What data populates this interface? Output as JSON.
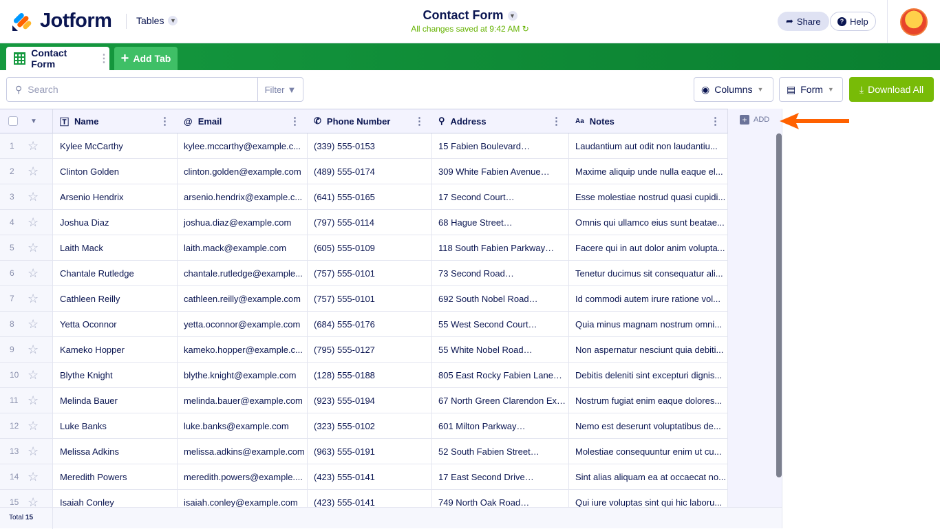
{
  "header": {
    "logo": "Jotform",
    "app_switcher": "Tables",
    "title": "Contact Form",
    "save_status": "All changes saved at 9:42 AM",
    "share": "Share",
    "help": "Help"
  },
  "tabs": {
    "active": "Contact Form",
    "add": "Add Tab"
  },
  "toolbar": {
    "search_placeholder": "Search",
    "search_value": "",
    "filter": "Filter",
    "columns": "Columns",
    "form": "Form",
    "download": "Download All"
  },
  "colors": {
    "brand_green": "#0a7f30",
    "download": "#78bb07",
    "arrow": "#ff6100",
    "saved": "#64b200"
  },
  "columns": [
    {
      "label": "Name",
      "icon": "text-icon"
    },
    {
      "label": "Email",
      "icon": "at-icon"
    },
    {
      "label": "Phone Number",
      "icon": "phone-icon"
    },
    {
      "label": "Address",
      "icon": "location-pin-icon"
    },
    {
      "label": "Notes",
      "icon": "text-size-icon"
    }
  ],
  "add_column": "ADD",
  "rows": [
    [
      "1",
      "Kylee McCarthy",
      "kylee.mccarthy@example.c...",
      "(339) 555-0153",
      "15 Fabien Boulevard…",
      "Laudantium aut odit non laudantiu..."
    ],
    [
      "2",
      "Clinton Golden",
      "clinton.golden@example.com",
      "(489) 555-0174",
      "309 White Fabien Avenue…",
      "Maxime aliquip unde nulla eaque el..."
    ],
    [
      "3",
      "Arsenio Hendrix",
      "arsenio.hendrix@example.c...",
      "(641) 555-0165",
      "17 Second Court…",
      "Esse molestiae nostrud quasi cupidi..."
    ],
    [
      "4",
      "Joshua Diaz",
      "joshua.diaz@example.com",
      "(797) 555-0114",
      "68 Hague Street…",
      "Omnis qui ullamco eius sunt beatae..."
    ],
    [
      "5",
      "Laith Mack",
      "laith.mack@example.com",
      "(605) 555-0109",
      "118 South Fabien Parkway…",
      "Facere qui in aut dolor anim volupta..."
    ],
    [
      "6",
      "Chantale Rutledge",
      "chantale.rutledge@example...",
      "(757) 555-0101",
      "73 Second Road…",
      "Tenetur ducimus sit consequatur ali..."
    ],
    [
      "7",
      "Cathleen Reilly",
      "cathleen.reilly@example.com",
      "(757) 555-0101",
      "692 South Nobel Road…",
      "Id commodi autem irure ratione vol..."
    ],
    [
      "8",
      "Yetta Oconnor",
      "yetta.oconnor@example.com",
      "(684) 555-0176",
      "55 West Second Court…",
      "Quia minus magnam nostrum omni..."
    ],
    [
      "9",
      "Kameko Hopper",
      "kameko.hopper@example.c...",
      "(795) 555-0127",
      "55 White Nobel Road…",
      "Non aspernatur nesciunt quia debiti..."
    ],
    [
      "10",
      "Blythe Knight",
      "blythe.knight@example.com",
      "(128) 555-0188",
      "805 East Rocky Fabien Lane…",
      "Debitis deleniti sint excepturi dignis..."
    ],
    [
      "11",
      "Melinda Bauer",
      "melinda.bauer@example.com",
      "(923) 555-0194",
      "67 North Green Clarendon Ex…",
      "Nostrum fugiat enim eaque dolores..."
    ],
    [
      "12",
      "Luke Banks",
      "luke.banks@example.com",
      "(323) 555-0102",
      "601 Milton Parkway…",
      "Nemo est deserunt voluptatibus de..."
    ],
    [
      "13",
      "Melissa Adkins",
      "melissa.adkins@example.com",
      "(963) 555-0191",
      "52 South Fabien Street…",
      "Molestiae consequuntur enim ut cu..."
    ],
    [
      "14",
      "Meredith Powers",
      "meredith.powers@example....",
      "(423) 555-0141",
      "17 East Second Drive…",
      "Sint alias aliquam ea at occaecat no..."
    ],
    [
      "15",
      "Isaiah Conley",
      "isaiah.conley@example.com",
      "(423) 555-0141",
      "749 North Oak Road…",
      "Qui iure voluptas sint qui hic laboru..."
    ]
  ],
  "footer": {
    "total_label": "Total",
    "total": "15"
  }
}
